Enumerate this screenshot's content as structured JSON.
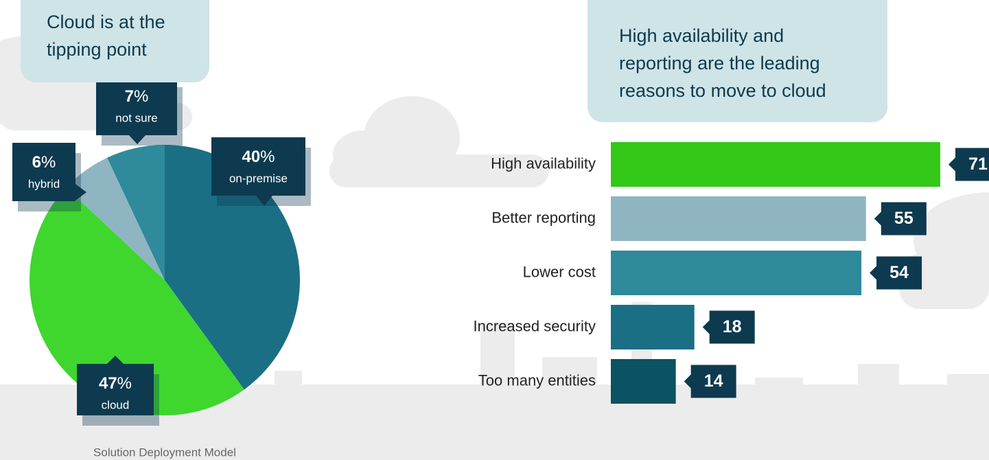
{
  "chart_data": [
    {
      "type": "pie",
      "title": "Cloud is at the tipping point",
      "caption": "Solution Deployment Model",
      "categories": [
        "on-premise",
        "cloud",
        "hybrid",
        "not sure"
      ],
      "values": [
        40,
        47,
        6,
        7
      ],
      "value_labels": [
        "40%",
        "47%",
        "6%",
        "7%"
      ],
      "colors": [
        "#1a6f85",
        "#3fd62e",
        "#8fb5c2",
        "#2f8a9b"
      ]
    },
    {
      "type": "hbar",
      "title": "High availability and reporting are the leading reasons to move to cloud",
      "categories": [
        "High availability",
        "Better reporting",
        "Lower cost",
        "Increased security",
        "Too many entities"
      ],
      "values": [
        71,
        55,
        54,
        18,
        14
      ],
      "colors": [
        "#33c817",
        "#8fb5c2",
        "#2f8a9b",
        "#1a6f85",
        "#0b5262"
      ]
    }
  ]
}
